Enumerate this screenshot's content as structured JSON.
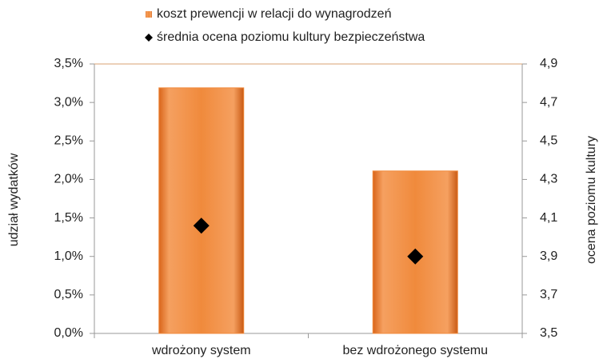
{
  "chart_data": {
    "type": "bar",
    "categories": [
      "wdrożony system",
      "bez wdrożonego systemu"
    ],
    "series": [
      {
        "name": "koszt prewencji w relacji do wynagrodzeń",
        "color": "#f08a3c",
        "type": "bar",
        "values": [
          3.19,
          2.11
        ]
      },
      {
        "name": "średnia ocena poziomu kultury bezpieczeństwa",
        "color": "#000000",
        "type": "scatter",
        "axis": "y2",
        "values": [
          4.06,
          3.9
        ]
      }
    ],
    "ylabel": "udział wydatków",
    "y2label": "ocena poziomu kultury",
    "ylim": [
      0,
      3.5
    ],
    "yticks": [
      {
        "value": 0,
        "label": "0,0%"
      },
      {
        "value": 0.5,
        "label": "0,5%"
      },
      {
        "value": 1,
        "label": "1,0%"
      },
      {
        "value": 1.5,
        "label": "1,5%"
      },
      {
        "value": 2,
        "label": "2,0%"
      },
      {
        "value": 2.5,
        "label": "2,5%"
      },
      {
        "value": 3,
        "label": "3,0%"
      },
      {
        "value": 3.5,
        "label": "3,5%"
      }
    ],
    "y2lim": [
      3.5,
      4.9
    ],
    "y2ticks": [
      {
        "value": 3.5,
        "label": "3,5"
      },
      {
        "value": 3.7,
        "label": "3,7"
      },
      {
        "value": 3.9,
        "label": "3,9"
      },
      {
        "value": 4.1,
        "label": "4,1"
      },
      {
        "value": 4.3,
        "label": "4,3"
      },
      {
        "value": 4.5,
        "label": "4,5"
      },
      {
        "value": 4.7,
        "label": "4,7"
      },
      {
        "value": 4.9,
        "label": "4,9"
      }
    ],
    "legend": "top"
  }
}
